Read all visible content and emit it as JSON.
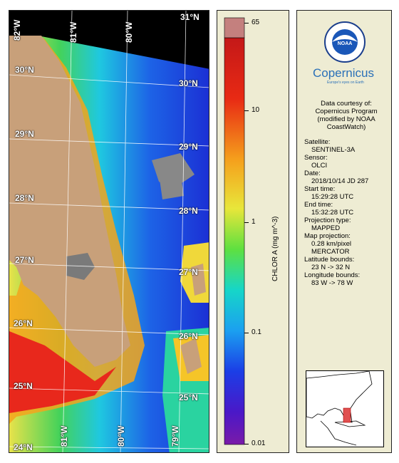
{
  "map": {
    "lat_labels": [
      "31°N",
      "30°N",
      "30°N",
      "29°N",
      "29°N",
      "28°N",
      "28°N",
      "27°N",
      "27°N",
      "26°N",
      "26°N",
      "25°N",
      "25°N",
      "24°N"
    ],
    "lon_labels": [
      "82°W",
      "81°W",
      "80°W",
      "81°W",
      "80°W",
      "79°W"
    ]
  },
  "colorbar": {
    "label": "CHLOR A (mg m^-3)",
    "ticks": [
      "65",
      "10",
      "1",
      "0.1",
      "0.01"
    ]
  },
  "logos": {
    "noaa": "NOAA",
    "copernicus": "Copernicus",
    "copernicus_tagline": "Europe's eyes on Earth"
  },
  "info": {
    "courtesy_1": "Data courtesy of:",
    "courtesy_2": "Copernicus Program",
    "courtesy_3": "(modified by NOAA",
    "courtesy_4": "CoastWatch)",
    "satellite_label": "Satellite:",
    "satellite": "SENTINEL-3A",
    "sensor_label": "Sensor:",
    "sensor": "OLCI",
    "date_label": "Date:",
    "date": "2018/10/14 JD 287",
    "start_label": "Start time:",
    "start": "15:29:28 UTC",
    "end_label": "End time:",
    "end": "15:32:28 UTC",
    "proj_type_label": "Projection type:",
    "proj_type": "MAPPED",
    "map_proj_label": "Map projection:",
    "map_proj_res": "0.28 km/pixel",
    "map_proj": "MERCATOR",
    "lat_bounds_label": "Latitude bounds:",
    "lat_bounds": "23 N -> 32 N",
    "lon_bounds_label": "Longitude bounds:",
    "lon_bounds": "83 W -> 78 W"
  }
}
